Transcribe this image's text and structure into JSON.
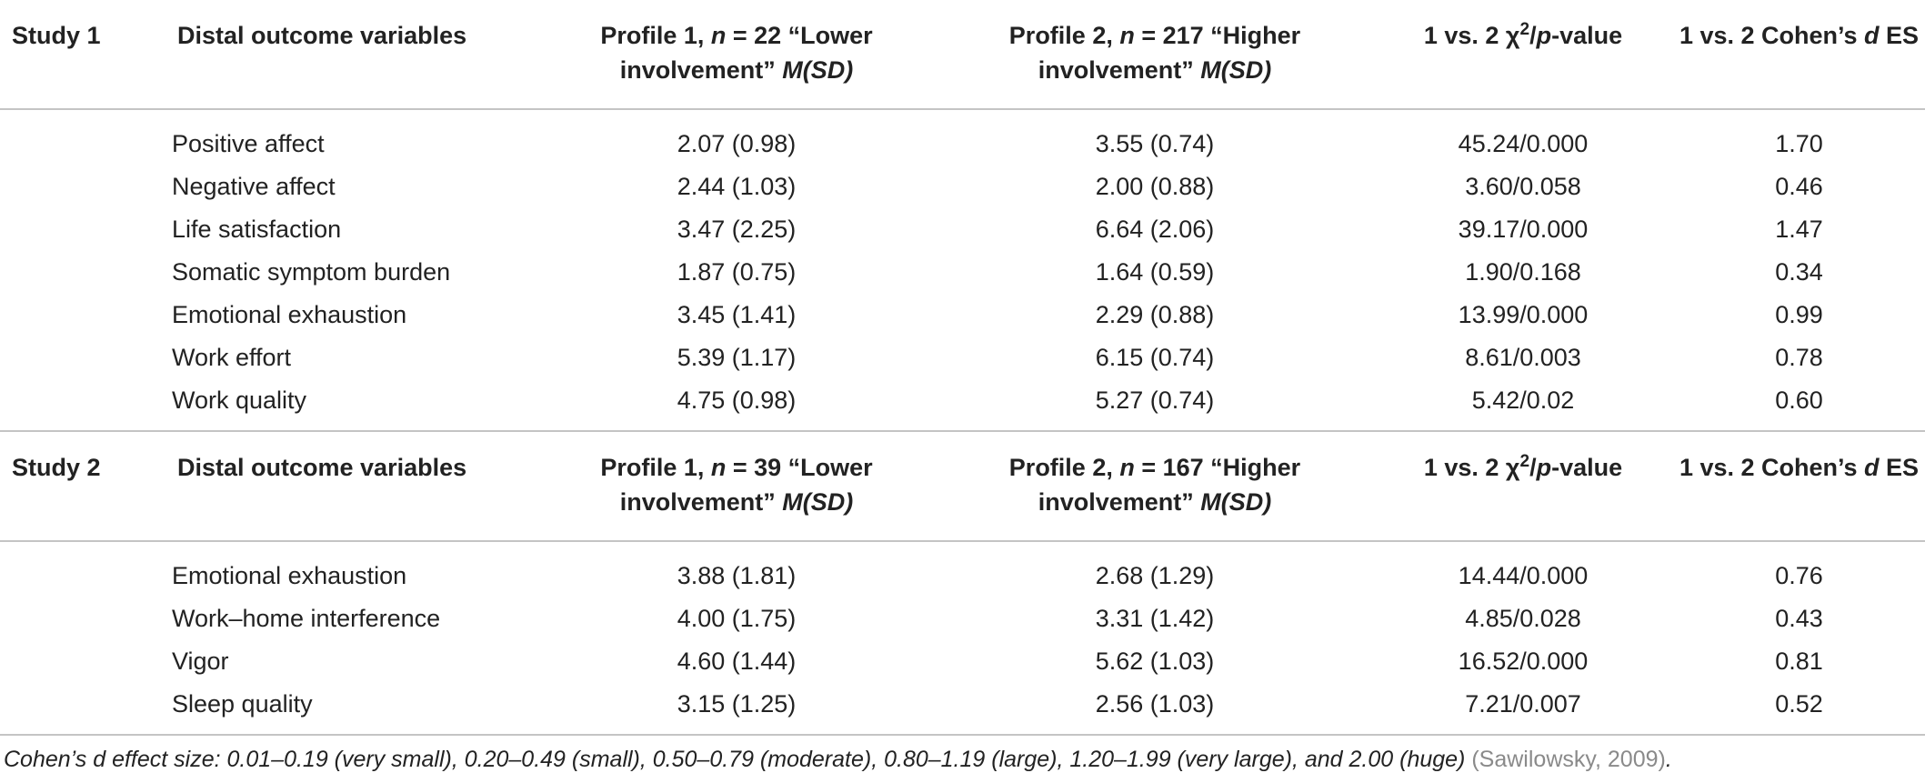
{
  "sections": [
    {
      "header": [
        "Study 1",
        "Distal outcome variables",
        [
          "Profile 1, ",
          "n",
          " = 22 “Lower involvement” ",
          "M(SD)"
        ],
        [
          "Profile 2, ",
          "n",
          " = 217 “Higher involvement” ",
          "M(SD)"
        ],
        [
          "1 vs. 2 χ",
          "2",
          "/",
          "p",
          "-value"
        ],
        [
          "1 vs. 2 Cohen’s ",
          "d",
          " ES"
        ]
      ],
      "rows": [
        [
          "Positive affect",
          "2.07 (0.98)",
          "3.55 (0.74)",
          "45.24/0.000",
          "1.70"
        ],
        [
          "Negative affect",
          "2.44 (1.03)",
          "2.00 (0.88)",
          "3.60/0.058",
          "0.46"
        ],
        [
          "Life satisfaction",
          "3.47 (2.25)",
          "6.64 (2.06)",
          "39.17/0.000",
          "1.47"
        ],
        [
          "Somatic symptom burden",
          "1.87 (0.75)",
          "1.64 (0.59)",
          "1.90/0.168",
          "0.34"
        ],
        [
          "Emotional exhaustion",
          "3.45 (1.41)",
          "2.29 (0.88)",
          "13.99/0.000",
          "0.99"
        ],
        [
          "Work effort",
          "5.39 (1.17)",
          "6.15 (0.74)",
          "8.61/0.003",
          "0.78"
        ],
        [
          "Work quality",
          "4.75 (0.98)",
          "5.27 (0.74)",
          "5.42/0.02",
          "0.60"
        ]
      ]
    },
    {
      "header": [
        "Study 2",
        "Distal outcome variables",
        [
          "Profile 1, ",
          "n",
          " = 39 “Lower involvement” ",
          "M(SD)"
        ],
        [
          "Profile 2, ",
          "n",
          " = 167 “Higher involvement” ",
          "M(SD)"
        ],
        [
          "1 vs. 2 χ",
          "2",
          "/",
          "p",
          "-value"
        ],
        [
          "1 vs. 2 Cohen’s ",
          "d",
          " ES"
        ]
      ],
      "rows": [
        [
          "Emotional exhaustion",
          "3.88 (1.81)",
          "2.68 (1.29)",
          "14.44/0.000",
          "0.76"
        ],
        [
          "Work–home interference",
          "4.00 (1.75)",
          "3.31 (1.42)",
          "4.85/0.028",
          "0.43"
        ],
        [
          "Vigor",
          "4.60 (1.44)",
          "5.62 (1.03)",
          "16.52/0.000",
          "0.81"
        ],
        [
          "Sleep quality",
          "3.15 (1.25)",
          "2.56 (1.03)",
          "7.21/0.007",
          "0.52"
        ]
      ]
    }
  ],
  "footnote": [
    "Cohen’s d effect size: 0.01–0.19 (very small), 0.20–0.49 (small), 0.50–0.79 (moderate), 0.80–1.19 (large), 1.20–1.99 (very large), and 2.00 (huge) ",
    "(Sawilowsky, 2009)",
    "."
  ]
}
